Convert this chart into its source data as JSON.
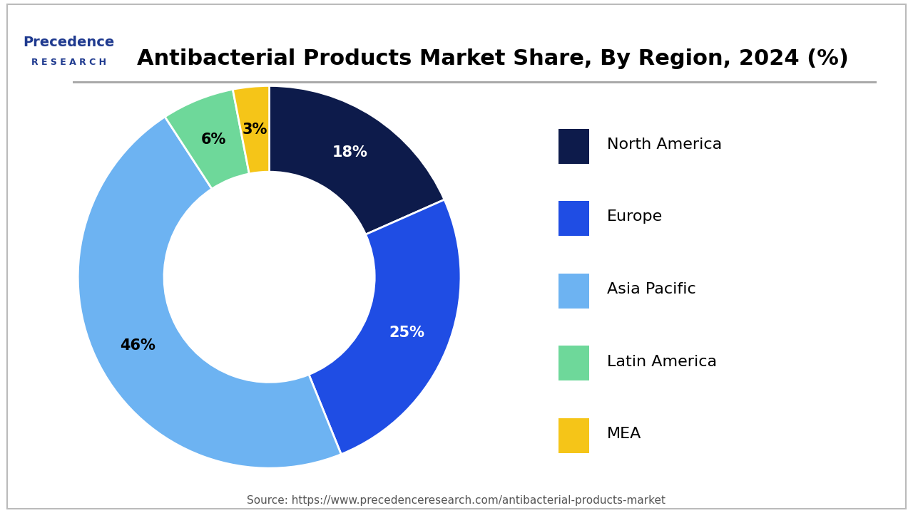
{
  "title": "Antibacterial Products Market Share, By Region, 2024 (%)",
  "source": "Source: https://www.precedenceresearch.com/antibacterial-products-market",
  "segments": [
    {
      "label": "North America",
      "value": 18,
      "color": "#0d1b4b"
    },
    {
      "label": "Europe",
      "value": 25,
      "color": "#1f4de4"
    },
    {
      "label": "Asia Pacific",
      "value": 46,
      "color": "#6db3f2"
    },
    {
      "label": "Latin America",
      "value": 6,
      "color": "#6ed89a"
    },
    {
      "label": "MEA",
      "value": 3,
      "color": "#f5c518"
    }
  ],
  "background_color": "#ffffff",
  "title_fontsize": 22,
  "label_fontsize": 15,
  "legend_fontsize": 16,
  "source_fontsize": 11,
  "wedge_edge_color": "#ffffff",
  "donut_ratio": 0.55,
  "start_angle": 90,
  "logo_text_precedence": "Precedence",
  "logo_text_research": "R E S E A R C H",
  "logo_color": "#1f3a8f"
}
